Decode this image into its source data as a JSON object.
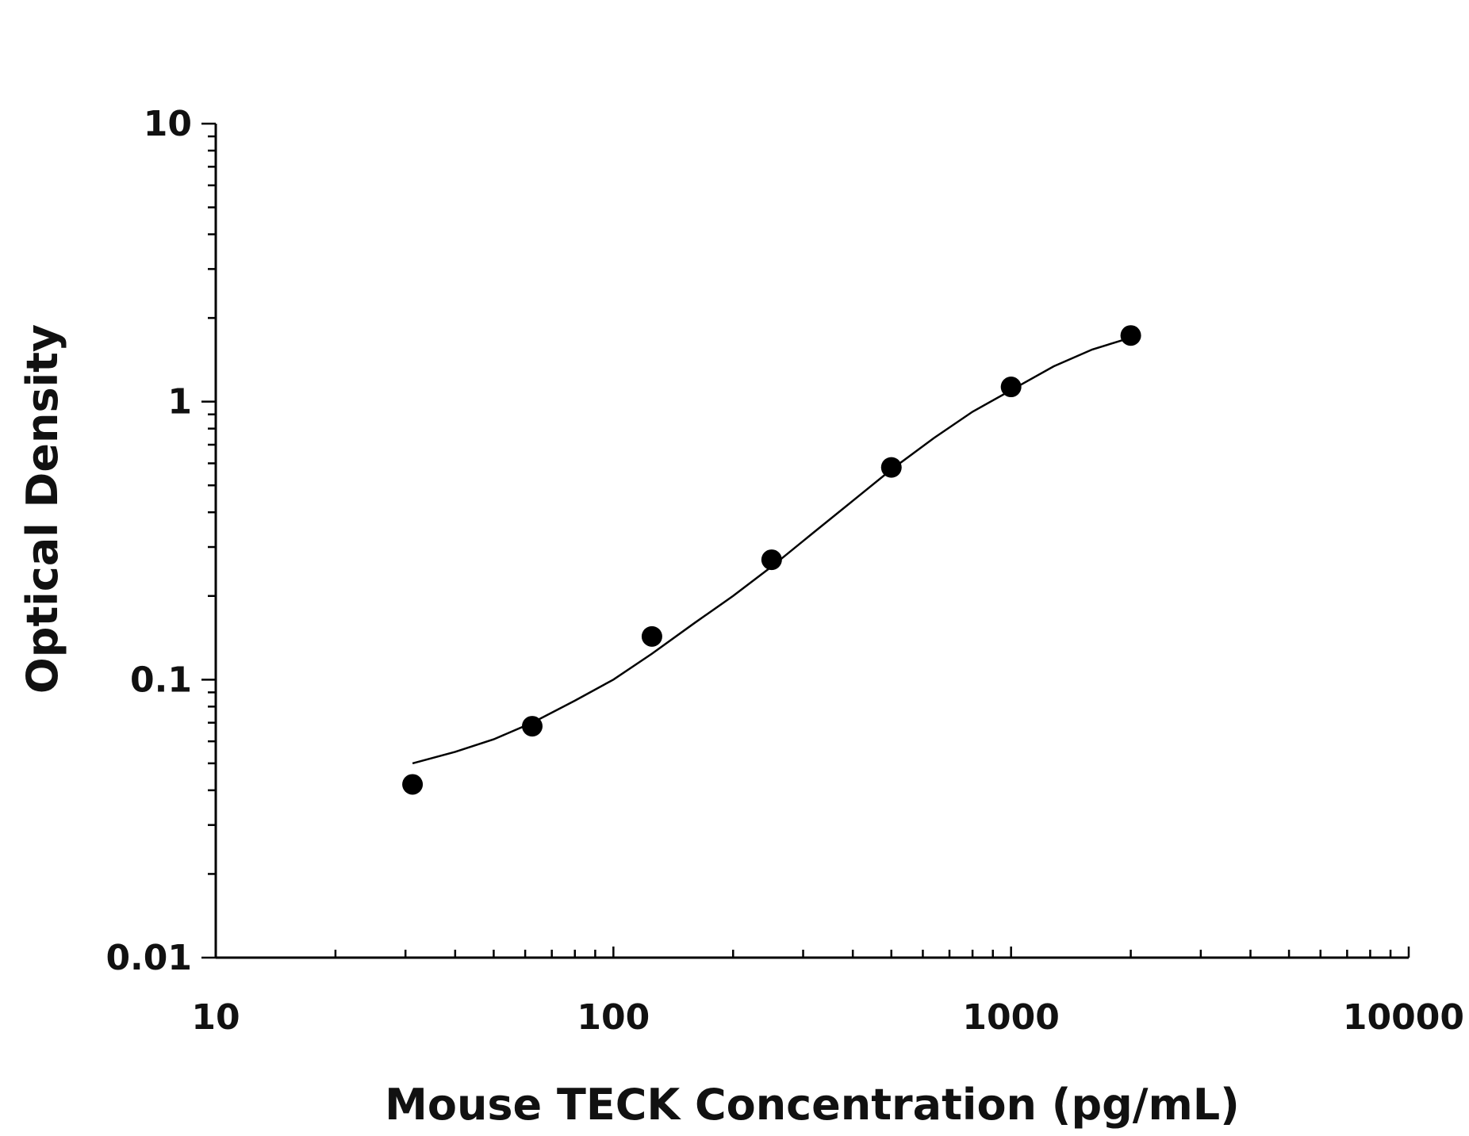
{
  "chart_data": {
    "type": "scatter",
    "title": "",
    "xlabel": "Mouse TECK Concentration (pg/mL)",
    "ylabel": "Optical Density",
    "x_scale": "log",
    "y_scale": "log",
    "xlim": [
      10,
      10000
    ],
    "ylim": [
      0.01,
      10
    ],
    "x_ticks": [
      10,
      100,
      1000,
      10000
    ],
    "x_tick_labels": [
      "10",
      "100",
      "1000",
      "10000"
    ],
    "y_ticks": [
      0.01,
      0.1,
      1,
      10
    ],
    "y_tick_labels": [
      "0.01",
      "0.1",
      "1",
      "10"
    ],
    "grid": false,
    "legend": "none",
    "series": [
      {
        "kind": "points",
        "x": [
          31.25,
          62.5,
          125,
          250,
          500,
          1000,
          2000
        ],
        "y": [
          0.042,
          0.068,
          0.143,
          0.27,
          0.58,
          1.13,
          1.73
        ]
      },
      {
        "kind": "fitted-curve",
        "x": [
          31.25,
          40,
          50,
          62.5,
          80,
          100,
          125,
          160,
          200,
          250,
          320,
          400,
          500,
          640,
          800,
          1000,
          1280,
          1600,
          2000
        ],
        "y": [
          0.05,
          0.055,
          0.061,
          0.07,
          0.084,
          0.1,
          0.124,
          0.16,
          0.2,
          0.255,
          0.34,
          0.44,
          0.57,
          0.74,
          0.92,
          1.1,
          1.34,
          1.54,
          1.7
        ]
      }
    ],
    "colors": {
      "marker": "#000000",
      "curve": "#000000",
      "axis": "#000000"
    }
  }
}
